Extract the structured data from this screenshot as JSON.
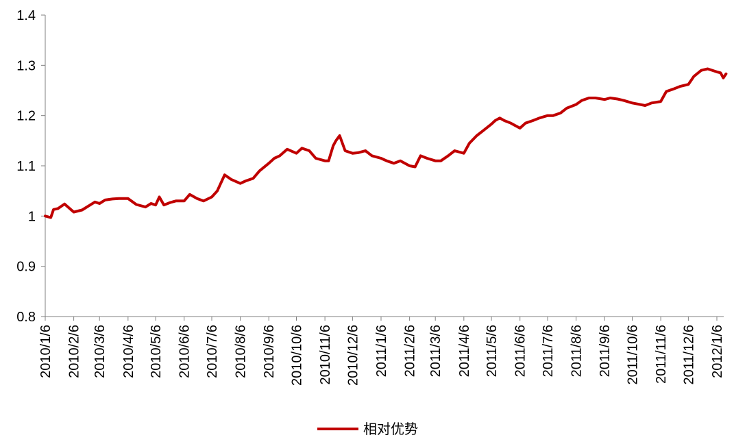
{
  "chart_data": {
    "type": "line",
    "title": "",
    "xlabel": "",
    "ylabel": "",
    "ylim": [
      0.8,
      1.4
    ],
    "y_ticks": [
      "0.8",
      "0.9",
      "1",
      "1.1",
      "1.2",
      "1.3",
      "1.4"
    ],
    "x_ticks": [
      "2010/1/6",
      "2010/2/6",
      "2010/3/6",
      "2010/4/6",
      "2010/5/6",
      "2010/6/6",
      "2010/7/6",
      "2010/8/6",
      "2010/9/6",
      "2010/10/6",
      "2010/11/6",
      "2010/12/6",
      "2011/1/6",
      "2011/2/6",
      "2011/3/6",
      "2011/4/6",
      "2011/5/6",
      "2011/6/6",
      "2011/7/6",
      "2011/8/6",
      "2011/9/6",
      "2011/10/6",
      "2011/11/6",
      "2011/12/6",
      "2012/1/6"
    ],
    "grid": false,
    "legend_position": "bottom-center",
    "series": [
      {
        "name": "相对优势",
        "color": "#C00000",
        "x": [
          "2010/1/6",
          "2010/1/12",
          "2010/1/15",
          "2010/1/20",
          "2010/1/27",
          "2010/2/6",
          "2010/2/15",
          "2010/2/22",
          "2010/3/1",
          "2010/3/6",
          "2010/3/12",
          "2010/3/20",
          "2010/3/27",
          "2010/4/6",
          "2010/4/15",
          "2010/4/25",
          "2010/5/1",
          "2010/5/6",
          "2010/5/10",
          "2010/5/15",
          "2010/5/22",
          "2010/5/28",
          "2010/6/6",
          "2010/6/12",
          "2010/6/20",
          "2010/6/27",
          "2010/7/6",
          "2010/7/12",
          "2010/7/20",
          "2010/7/27",
          "2010/8/6",
          "2010/8/12",
          "2010/8/20",
          "2010/8/27",
          "2010/9/6",
          "2010/9/12",
          "2010/9/18",
          "2010/9/26",
          "2010/10/6",
          "2010/10/12",
          "2010/10/20",
          "2010/10/27",
          "2010/11/6",
          "2010/11/10",
          "2010/11/15",
          "2010/11/18",
          "2010/11/22",
          "2010/11/28",
          "2010/12/6",
          "2010/12/12",
          "2010/12/20",
          "2010/12/27",
          "2011/1/6",
          "2011/1/12",
          "2011/1/20",
          "2011/1/27",
          "2011/2/6",
          "2011/2/12",
          "2011/2/18",
          "2011/2/25",
          "2011/3/6",
          "2011/3/12",
          "2011/3/20",
          "2011/3/27",
          "2011/4/6",
          "2011/4/12",
          "2011/4/20",
          "2011/4/27",
          "2011/5/6",
          "2011/5/10",
          "2011/5/15",
          "2011/5/20",
          "2011/5/27",
          "2011/6/6",
          "2011/6/12",
          "2011/6/20",
          "2011/6/27",
          "2011/7/6",
          "2011/7/12",
          "2011/7/20",
          "2011/7/27",
          "2011/8/6",
          "2011/8/12",
          "2011/8/20",
          "2011/8/27",
          "2011/9/6",
          "2011/9/12",
          "2011/9/20",
          "2011/9/27",
          "2011/10/6",
          "2011/10/12",
          "2011/10/20",
          "2011/10/27",
          "2011/11/6",
          "2011/11/12",
          "2011/11/20",
          "2011/11/27",
          "2011/12/6",
          "2011/12/12",
          "2011/12/20",
          "2011/12/27",
          "2012/1/6",
          "2012/1/10",
          "2012/1/13",
          "2012/1/16"
        ],
        "values": [
          1.0,
          0.997,
          1.013,
          1.015,
          1.024,
          1.008,
          1.012,
          1.02,
          1.028,
          1.025,
          1.032,
          1.034,
          1.035,
          1.035,
          1.023,
          1.018,
          1.025,
          1.022,
          1.038,
          1.022,
          1.027,
          1.03,
          1.03,
          1.043,
          1.035,
          1.03,
          1.038,
          1.05,
          1.082,
          1.073,
          1.065,
          1.07,
          1.075,
          1.09,
          1.105,
          1.115,
          1.12,
          1.133,
          1.125,
          1.135,
          1.13,
          1.115,
          1.11,
          1.11,
          1.14,
          1.15,
          1.16,
          1.13,
          1.125,
          1.126,
          1.13,
          1.12,
          1.115,
          1.11,
          1.105,
          1.11,
          1.1,
          1.098,
          1.12,
          1.115,
          1.11,
          1.11,
          1.12,
          1.13,
          1.125,
          1.145,
          1.16,
          1.17,
          1.183,
          1.19,
          1.195,
          1.19,
          1.185,
          1.175,
          1.185,
          1.19,
          1.195,
          1.2,
          1.2,
          1.205,
          1.215,
          1.222,
          1.23,
          1.235,
          1.235,
          1.232,
          1.235,
          1.233,
          1.23,
          1.225,
          1.223,
          1.22,
          1.225,
          1.228,
          1.248,
          1.253,
          1.258,
          1.262,
          1.278,
          1.29,
          1.293,
          1.287,
          1.285,
          1.275,
          1.283
        ]
      }
    ]
  }
}
